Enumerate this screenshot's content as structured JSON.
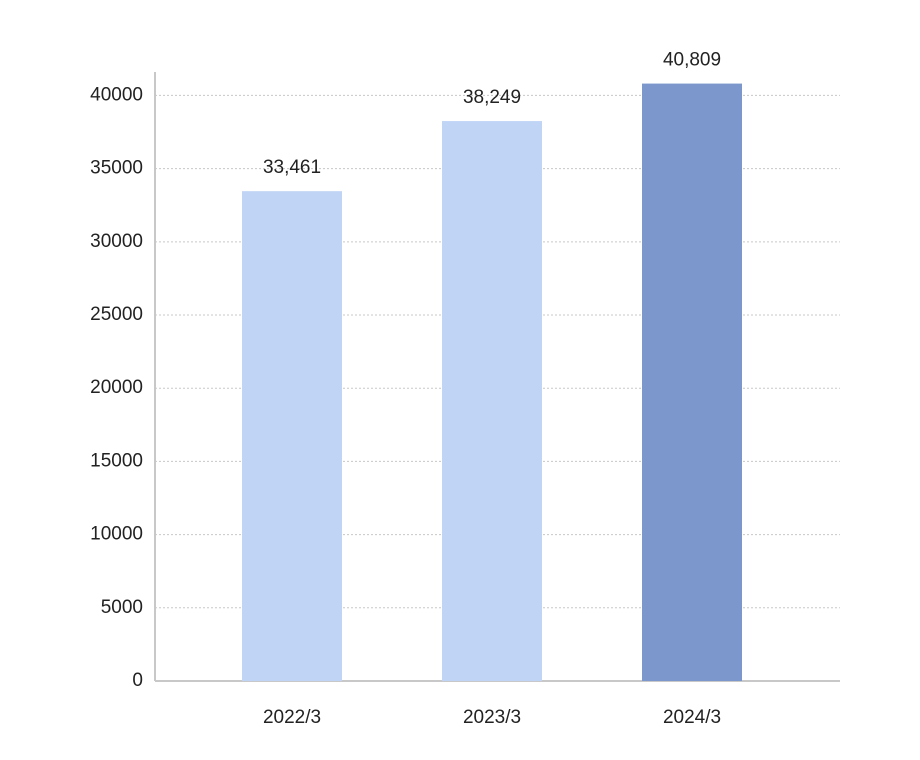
{
  "chart_data": {
    "type": "bar",
    "categories": [
      "2022/3",
      "2023/3",
      "2024/3"
    ],
    "values": [
      33461,
      38249,
      40809
    ],
    "value_labels": [
      "33,461",
      "38,249",
      "40,809"
    ],
    "colors": [
      "#c0d5f5",
      "#c0d5f5",
      "#7b97cb"
    ],
    "ylim": [
      0,
      41600
    ],
    "yticks": [
      0,
      5000,
      10000,
      15000,
      20000,
      25000,
      30000,
      35000,
      40000
    ],
    "grid": true
  }
}
